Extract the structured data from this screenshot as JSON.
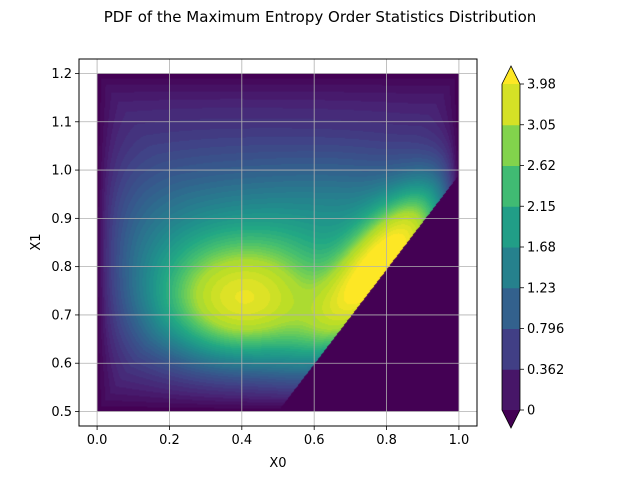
{
  "chart_data": {
    "type": "heatmap",
    "title": "PDF of the Maximum Entropy Order Statistics Distribution",
    "xlabel": "X0",
    "ylabel": "X1",
    "xlim": [
      -0.05,
      1.05
    ],
    "ylim": [
      0.47,
      1.23
    ],
    "data_domain": {
      "x": [
        0.0,
        1.0
      ],
      "y": [
        0.5,
        1.2
      ]
    },
    "x_ticks": [
      0.0,
      0.2,
      0.4,
      0.6,
      0.8,
      1.0
    ],
    "x_tick_labels": [
      "0.0",
      "0.2",
      "0.4",
      "0.6",
      "0.8",
      "1.0"
    ],
    "y_ticks": [
      0.5,
      0.6,
      0.7,
      0.8,
      0.9,
      1.0,
      1.1,
      1.2
    ],
    "y_tick_labels": [
      "0.5",
      "0.6",
      "0.7",
      "0.8",
      "0.9",
      "1.0",
      "1.1",
      "1.2"
    ],
    "grid": true,
    "support_boundary": {
      "x": [
        0.5,
        1.0
      ],
      "y": [
        0.5,
        0.99
      ]
    },
    "peaks": [
      {
        "x": 0.41,
        "y": 0.72,
        "value": 3.4
      },
      {
        "x": 0.68,
        "y": 0.72,
        "value": 3.9
      },
      {
        "x": 0.87,
        "y": 0.88,
        "value": 3.8
      }
    ],
    "colorbar": {
      "colormap": "viridis",
      "min": 0,
      "max": 3.98,
      "extend": "both",
      "tick_values": [
        0,
        0.362,
        0.796,
        1.23,
        1.68,
        2.15,
        2.62,
        3.05,
        3.98
      ],
      "tick_labels": [
        "0",
        "0.362",
        "0.796",
        "1.23",
        "1.68",
        "2.15",
        "2.62",
        "3.05",
        "3.98"
      ]
    }
  }
}
